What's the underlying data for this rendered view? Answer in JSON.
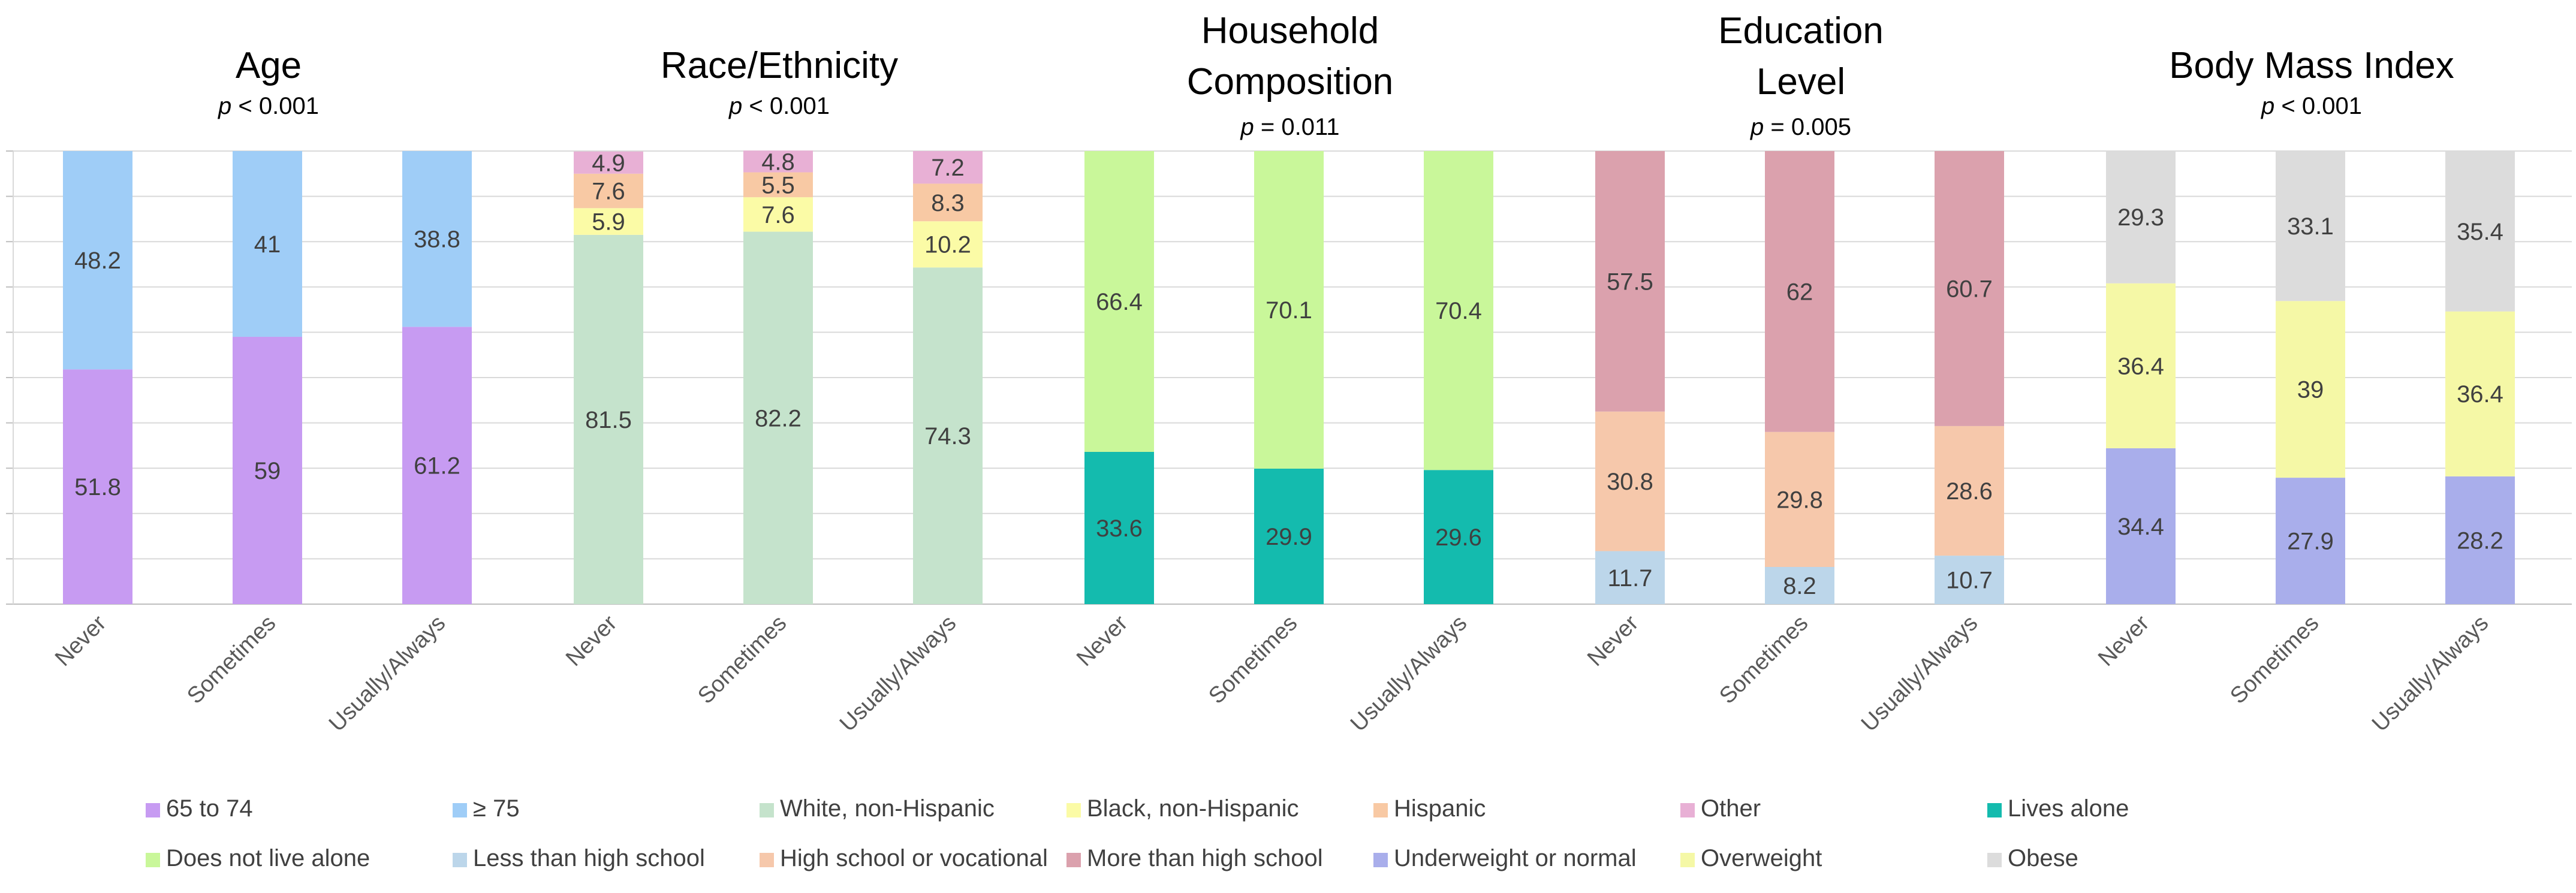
{
  "chart_data": {
    "type": "bar",
    "stacked": true,
    "normalized": true,
    "ylim": [
      0,
      100
    ],
    "legend_position": "bottom",
    "categories": [
      "Never",
      "Sometimes",
      "Usually/Always"
    ],
    "panels": [
      {
        "title": [
          "Age"
        ],
        "p_symbol": "p",
        "p_rest": " < 0.001",
        "series": [
          {
            "name": "65 to 74",
            "color": "#c79bf2",
            "values": [
              51.8,
              59,
              61.2
            ],
            "labels": [
              "51.8",
              "59",
              "61.2"
            ]
          },
          {
            "name": "≥ 75",
            "color": "#9fcdf7",
            "values": [
              48.2,
              41,
              38.8
            ],
            "labels": [
              "48.2",
              "41",
              "38.8"
            ]
          }
        ]
      },
      {
        "title": [
          "Race/Ethnicity"
        ],
        "p_symbol": "p",
        "p_rest": " < 0.001",
        "series": [
          {
            "name": "White, non-Hispanic",
            "color": "#c5e3cc",
            "values": [
              81.5,
              82.2,
              74.3
            ],
            "labels": [
              "81.5",
              "82.2",
              "74.3"
            ]
          },
          {
            "name": "Black, non-Hispanic",
            "color": "#fbfba6",
            "values": [
              5.9,
              7.6,
              10.2
            ],
            "labels": [
              "5.9",
              "7.6",
              "10.2"
            ]
          },
          {
            "name": "Hispanic",
            "color": "#f8c9a4",
            "values": [
              7.6,
              5.5,
              8.3
            ],
            "labels": [
              "7.6",
              "5.5",
              "8.3"
            ]
          },
          {
            "name": "Other",
            "color": "#e8b0d5",
            "values": [
              4.9,
              4.8,
              7.2
            ],
            "labels": [
              "4.9",
              "4.8",
              "7.2"
            ]
          }
        ]
      },
      {
        "title": [
          "Household",
          "Composition"
        ],
        "p_symbol": "p",
        "p_rest": " = 0.011",
        "series": [
          {
            "name": "Lives alone",
            "color": "#14bbae",
            "values": [
              33.6,
              29.9,
              29.6
            ],
            "labels": [
              "33.6",
              "29.9",
              "29.6"
            ]
          },
          {
            "name": "Does not live alone",
            "color": "#c9f79a",
            "values": [
              66.4,
              70.1,
              70.4
            ],
            "labels": [
              "66.4",
              "70.1",
              "70.4"
            ]
          }
        ]
      },
      {
        "title": [
          "Education",
          "Level"
        ],
        "p_symbol": "p",
        "p_rest": " = 0.005",
        "series": [
          {
            "name": "Less than high school",
            "color": "#bcd6ea",
            "values": [
              11.7,
              8.2,
              10.7
            ],
            "labels": [
              "11.7",
              "8.2",
              "10.7"
            ]
          },
          {
            "name": "High school or vocational",
            "color": "#f6c8ab",
            "values": [
              30.8,
              29.8,
              28.6
            ],
            "labels": [
              "30.8",
              "29.8",
              "28.6"
            ]
          },
          {
            "name": "More than high school",
            "color": "#dba1ad",
            "values": [
              57.5,
              62,
              60.7
            ],
            "labels": [
              "57.5",
              "62",
              "60.7"
            ]
          }
        ]
      },
      {
        "title": [
          "Body Mass Index"
        ],
        "p_symbol": "p",
        "p_rest": " < 0.001",
        "series": [
          {
            "name": "Underweight or normal",
            "color": "#a9aeeb",
            "values": [
              34.4,
              27.9,
              28.2
            ],
            "labels": [
              "34.4",
              "27.9",
              "28.2"
            ]
          },
          {
            "name": "Overweight",
            "color": "#f5f8a6",
            "values": [
              36.4,
              39,
              36.4
            ],
            "labels": [
              "36.4",
              "39",
              "36.4"
            ]
          },
          {
            "name": "Obese",
            "color": "#dcdcdc",
            "values": [
              29.3,
              33.1,
              35.4
            ],
            "labels": [
              "29.3",
              "33.1",
              "35.4"
            ]
          }
        ]
      }
    ],
    "legend": [
      {
        "label": "65 to 74",
        "color": "#c79bf2"
      },
      {
        "label": "≥ 75",
        "color": "#9fcdf7"
      },
      {
        "label": "White, non-Hispanic",
        "color": "#c5e3cc"
      },
      {
        "label": "Black, non-Hispanic",
        "color": "#fbfba6"
      },
      {
        "label": "Hispanic",
        "color": "#f8c9a4"
      },
      {
        "label": "Other",
        "color": "#e8b0d5"
      },
      {
        "label": "Lives alone",
        "color": "#14bbae"
      },
      {
        "label": "Does not live alone",
        "color": "#c9f79a"
      },
      {
        "label": "Less than high school",
        "color": "#bcd6ea"
      },
      {
        "label": "High school or vocational",
        "color": "#f6c8ab"
      },
      {
        "label": "More than high school",
        "color": "#dba1ad"
      },
      {
        "label": "Underweight or normal",
        "color": "#a9aeeb"
      },
      {
        "label": "Overweight",
        "color": "#f5f8a6"
      },
      {
        "label": "Obese",
        "color": "#dcdcdc"
      }
    ]
  }
}
